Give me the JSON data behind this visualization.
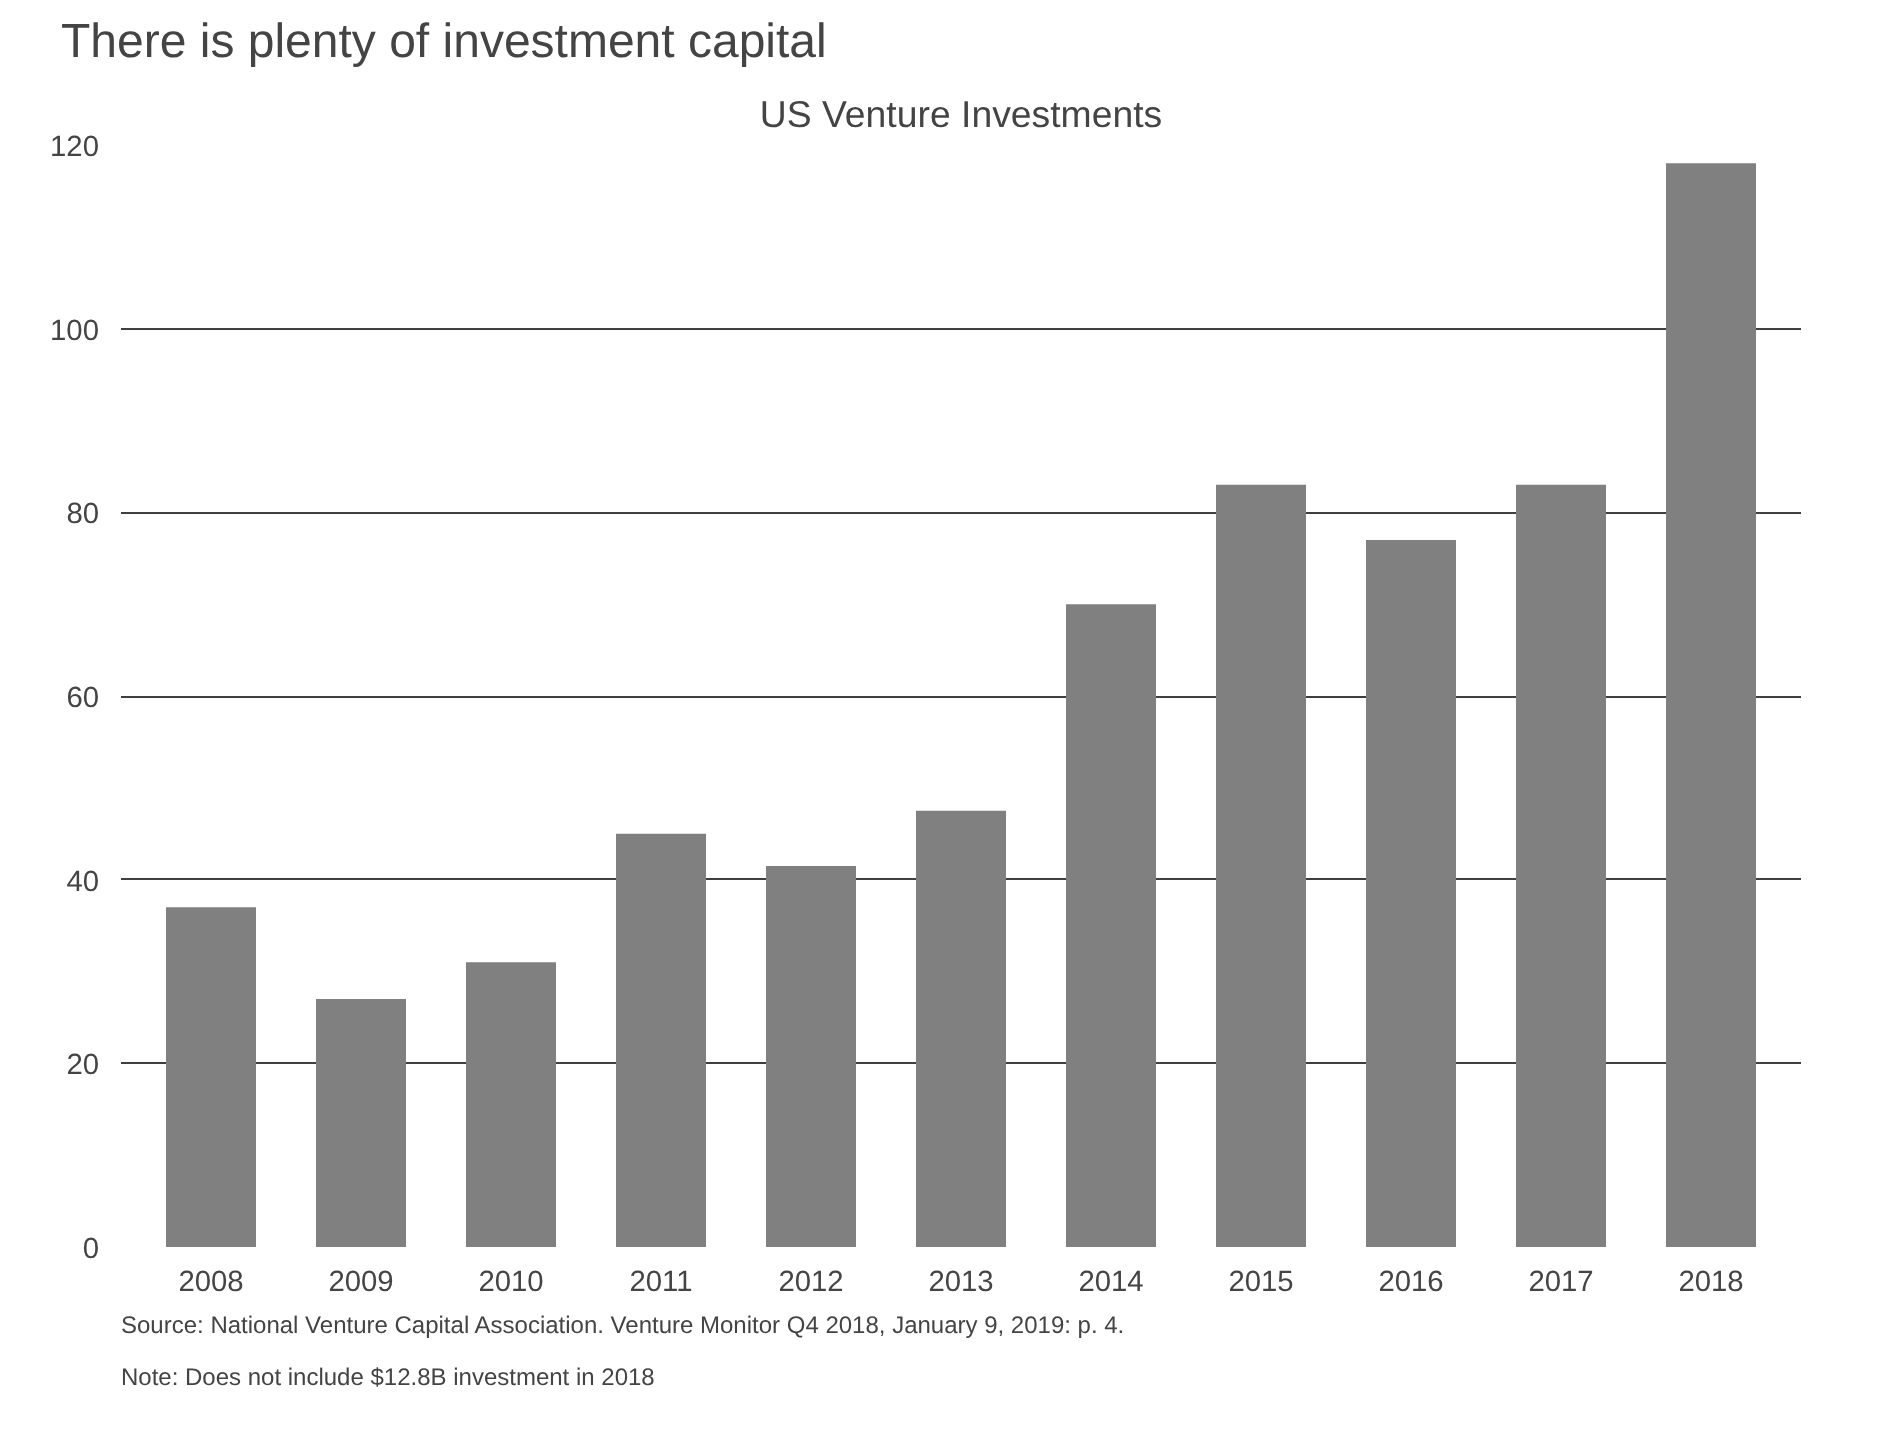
{
  "chart_data": {
    "type": "bar",
    "title": "There is plenty of investment capital",
    "subtitle": "US Venture Investments",
    "categories": [
      "2008",
      "2009",
      "2010",
      "2011",
      "2012",
      "2013",
      "2014",
      "2015",
      "2016",
      "2017",
      "2018"
    ],
    "values": [
      37,
      27,
      31,
      45,
      41.5,
      47.5,
      70,
      83,
      77,
      83,
      118
    ],
    "color": "#808080",
    "ylim": [
      0,
      120
    ],
    "yticks": [
      0,
      20,
      40,
      60,
      80,
      100,
      120
    ],
    "grid": "y",
    "annotations": [
      "Source: National Venture Capital Association. Venture Monitor Q4 2018, January 9, 2019: p. 4.",
      "Note: Does not include $12.8B investment in 2018"
    ]
  }
}
